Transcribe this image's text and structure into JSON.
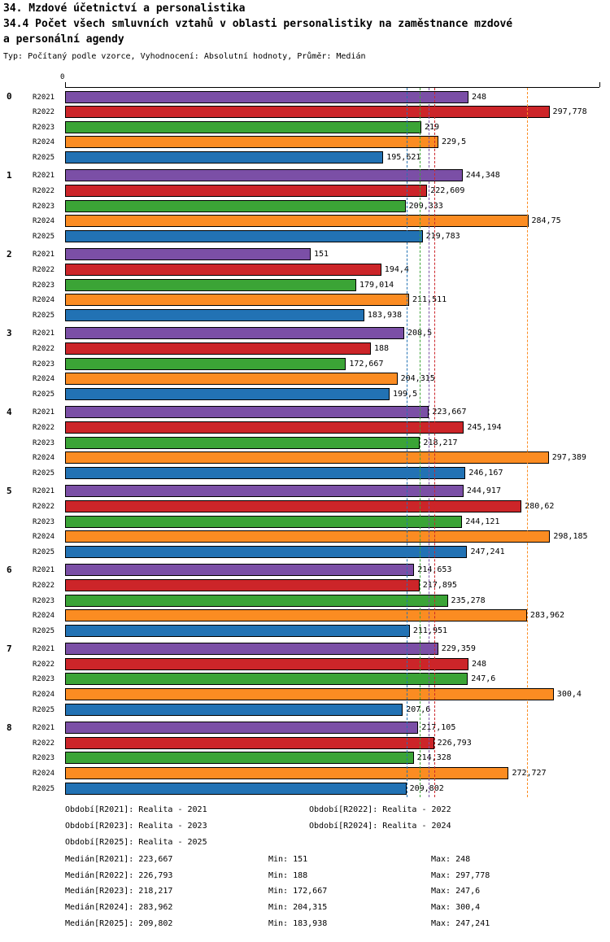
{
  "header": {
    "line1": "34. Mzdové účetnictví a personalistika",
    "line2": "34.4 Počet všech smluvních vztahů v oblasti personalistiky na zaměstnance mzdové",
    "line3": "a personální agendy",
    "subtitle": "Typ: Počítaný podle vzorce, Vyhodnocení: Absolutní hodnoty, Průměr: Medián"
  },
  "chart_data": {
    "type": "bar",
    "orientation": "horizontal",
    "title": "34.4 Počet všech smluvních vztahů v oblasti personalistiky na zaměstnance mzdové a personální agendy",
    "axis_origin_label": "0",
    "xlim": [
      0,
      328.5
    ],
    "grid": false,
    "categories": [
      "0",
      "1",
      "2",
      "3",
      "4",
      "5",
      "6",
      "7",
      "8"
    ],
    "series": [
      {
        "name": "R2021",
        "color": "#7b4fa6",
        "values": [
          248,
          244.348,
          151,
          208.5,
          223.667,
          244.917,
          214.653,
          229.359,
          217.105
        ],
        "labels": [
          "248",
          "244,348",
          "151",
          "208,5",
          "223,667",
          "244,917",
          "214,653",
          "229,359",
          "217,105"
        ],
        "median": 223.667
      },
      {
        "name": "R2022",
        "color": "#cc2529",
        "values": [
          297.778,
          222.609,
          194.4,
          188,
          245.194,
          280.62,
          217.895,
          248,
          226.793
        ],
        "labels": [
          "297,778",
          "222,609",
          "194,4",
          "188",
          "245,194",
          "280,62",
          "217,895",
          "248",
          "226,793"
        ],
        "median": 226.793
      },
      {
        "name": "R2023",
        "color": "#3ba436",
        "values": [
          219,
          209.333,
          179.014,
          172.667,
          218.217,
          244.121,
          235.278,
          247.6,
          214.328
        ],
        "labels": [
          "219",
          "209,333",
          "179,014",
          "172,667",
          "218,217",
          "244,121",
          "235,278",
          "247,6",
          "214,328"
        ],
        "median": 218.217
      },
      {
        "name": "R2024",
        "color": "#fb8c22",
        "values": [
          229.5,
          284.75,
          211.511,
          204.315,
          297.389,
          298.185,
          283.962,
          300.4,
          272.727
        ],
        "labels": [
          "229,5",
          "284,75",
          "211,511",
          "204,315",
          "297,389",
          "298,185",
          "283,962",
          "300,4",
          "272,727"
        ],
        "median": 283.962
      },
      {
        "name": "R2025",
        "color": "#2272b4",
        "values": [
          195.621,
          219.783,
          183.938,
          199.5,
          246.167,
          247.241,
          211.951,
          207.6,
          209.802
        ],
        "labels": [
          "195,621",
          "219,783",
          "183,938",
          "199,5",
          "246,167",
          "247,241",
          "211,951",
          "207,6",
          "209,802"
        ],
        "median": 209.802
      }
    ]
  },
  "legend": [
    "Období[R2021]: Realita - 2021",
    "Období[R2022]: Realita - 2022",
    "Období[R2023]: Realita - 2023",
    "Období[R2024]: Realita - 2024",
    "Období[R2025]: Realita - 2025"
  ],
  "stats": [
    {
      "median": "Medián[R2021]: 223,667",
      "min": "Min: 151",
      "max": "Max: 248"
    },
    {
      "median": "Medián[R2022]: 226,793",
      "min": "Min: 188",
      "max": "Max: 297,778"
    },
    {
      "median": "Medián[R2023]: 218,217",
      "min": "Min: 172,667",
      "max": "Max: 247,6"
    },
    {
      "median": "Medián[R2024]: 283,962",
      "min": "Min: 204,315",
      "max": "Max: 300,4"
    },
    {
      "median": "Medián[R2025]: 209,802",
      "min": "Min: 183,938",
      "max": "Max: 247,241"
    }
  ]
}
